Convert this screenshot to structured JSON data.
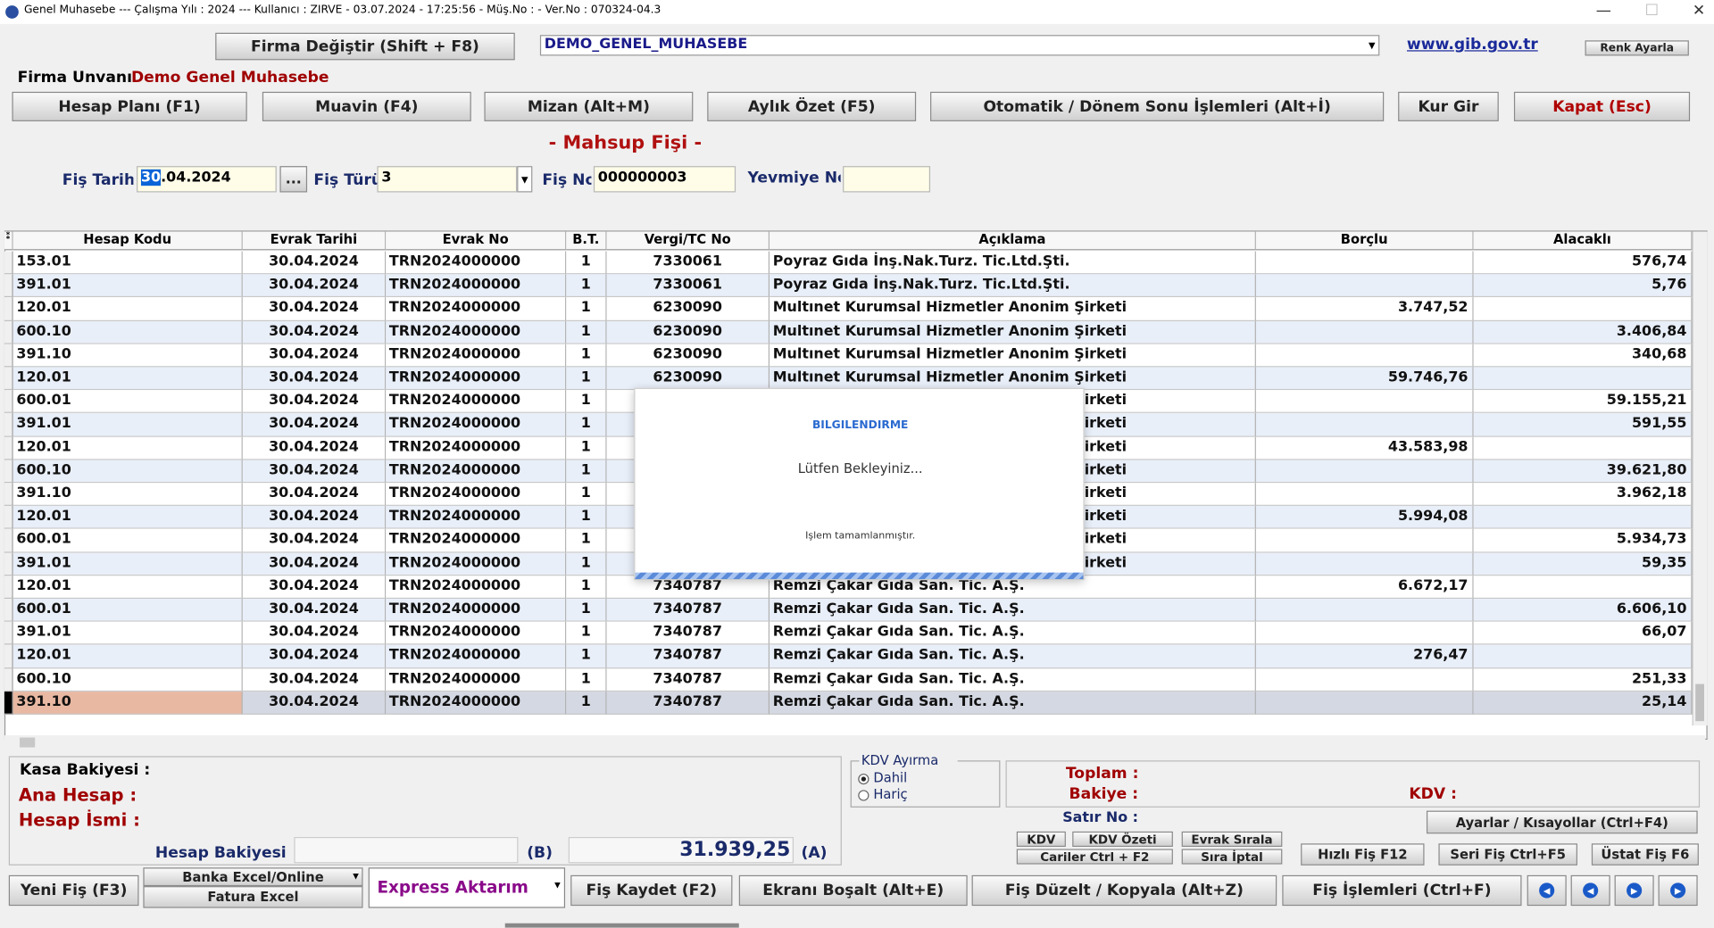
{
  "title_bar": "Genel Muhasebe --- Çalışma Yılı : 2024 --- Kullanıcı : ZIRVE - 03.07.2024 - 17:25:56 - Müş.No : - Ver.No : 070324-04.3",
  "header": {
    "firma_degistir": "Firma Değiştir (Shift + F8)",
    "company_select": "DEMO_GENEL_MUHASEBE",
    "link": "www.gib.gov.tr",
    "renk_ayarla": "Renk Ayarla",
    "firma_unvani_label": "Firma Unvanı :",
    "firma_unvani": "Demo Genel Muhasebe"
  },
  "toolbar": [
    "Hesap Planı (F1)",
    "Muavin (F4)",
    "Mizan (Alt+M)",
    "Aylık Özet (F5)",
    "Otomatik / Dönem Sonu İşlemleri (Alt+İ)",
    "Kur Gir",
    "Kapat (Esc)"
  ],
  "form": {
    "title": "- Mahsup Fişi -",
    "fis_tarihi_label": "Fiş Tarihi",
    "fis_tarihi": "30.04.2024",
    "fis_turu_label": "Fiş Türü",
    "fis_turu": "3",
    "fis_no_label": "Fiş No",
    "fis_no": "000000003",
    "yevmiye_no_label": "Yevmiye No"
  },
  "table": {
    "columns": [
      "Hesap Kodu",
      "Evrak Tarihi",
      "Evrak No",
      "B.T.",
      "Vergi/TC No",
      "Açıklama",
      "Borçlu",
      "Alacaklı"
    ],
    "rows": [
      [
        "153.01",
        "30.04.2024",
        "TRN2024000000",
        "1",
        "7330061",
        "Poyraz Gıda İnş.Nak.Turz. Tic.Ltd.Şti.",
        null,
        "576,74"
      ],
      [
        "391.01",
        "30.04.2024",
        "TRN2024000000",
        "1",
        "7330061",
        "Poyraz Gıda İnş.Nak.Turz. Tic.Ltd.Şti.",
        null,
        "5,76"
      ],
      [
        "120.01",
        "30.04.2024",
        "TRN2024000000",
        "1",
        "6230090",
        "Multınet Kurumsal Hizmetler Anonim Şirketi",
        "3.747,52",
        null
      ],
      [
        "600.10",
        "30.04.2024",
        "TRN2024000000",
        "1",
        "6230090",
        "Multınet Kurumsal Hizmetler Anonim Şirketi",
        null,
        "3.406,84"
      ],
      [
        "391.10",
        "30.04.2024",
        "TRN2024000000",
        "1",
        "6230090",
        "Multınet Kurumsal Hizmetler Anonim Şirketi",
        null,
        "340,68"
      ],
      [
        "120.01",
        "30.04.2024",
        "TRN2024000000",
        "1",
        "6230090",
        "Multınet Kurumsal Hizmetler Anonim Şirketi",
        "59.746,76",
        null
      ],
      [
        "600.01",
        "30.04.2024",
        "TRN2024000000",
        "1",
        null,
        "Multınet Kurumsal Hizmetler Anonim Şirketi",
        null,
        "59.155,21"
      ],
      [
        "391.01",
        "30.04.2024",
        "TRN2024000000",
        "1",
        null,
        "Multınet Kurumsal Hizmetler Anonim Şirketi",
        null,
        "591,55"
      ],
      [
        "120.01",
        "30.04.2024",
        "TRN2024000000",
        "1",
        null,
        "Multınet Kurumsal Hizmetler Anonim Şirketi",
        "43.583,98",
        null
      ],
      [
        "600.10",
        "30.04.2024",
        "TRN2024000000",
        "1",
        null,
        "Multınet Kurumsal Hizmetler Anonim Şirketi",
        null,
        "39.621,80"
      ],
      [
        "391.10",
        "30.04.2024",
        "TRN2024000000",
        "1",
        null,
        "Multınet Kurumsal Hizmetler Anonim Şirketi",
        null,
        "3.962,18"
      ],
      [
        "120.01",
        "30.04.2024",
        "TRN2024000000",
        "1",
        null,
        "Multınet Kurumsal Hizmetler Anonim Şirketi",
        "5.994,08",
        null
      ],
      [
        "600.01",
        "30.04.2024",
        "TRN2024000000",
        "1",
        null,
        "Multınet Kurumsal Hizmetler Anonim Şirketi",
        null,
        "5.934,73"
      ],
      [
        "391.01",
        "30.04.2024",
        "TRN2024000000",
        "1",
        null,
        "Multınet Kurumsal Hizmetler Anonim Şirketi",
        null,
        "59,35"
      ],
      [
        "120.01",
        "30.04.2024",
        "TRN2024000000",
        "1",
        "7340787",
        "Remzi Çakar Gıda San. Tic. A.Ş.",
        "6.672,17",
        null
      ],
      [
        "600.01",
        "30.04.2024",
        "TRN2024000000",
        "1",
        "7340787",
        "Remzi Çakar Gıda San. Tic. A.Ş.",
        null,
        "6.606,10"
      ],
      [
        "391.01",
        "30.04.2024",
        "TRN2024000000",
        "1",
        "7340787",
        "Remzi Çakar Gıda San. Tic. A.Ş.",
        null,
        "66,07"
      ],
      [
        "120.01",
        "30.04.2024",
        "TRN2024000000",
        "1",
        "7340787",
        "Remzi Çakar Gıda San. Tic. A.Ş.",
        "276,47",
        null
      ],
      [
        "600.10",
        "30.04.2024",
        "TRN2024000000",
        "1",
        "7340787",
        "Remzi Çakar Gıda San. Tic. A.Ş.",
        null,
        "251,33"
      ],
      [
        "391.10",
        "30.04.2024",
        "TRN2024000000",
        "1",
        "7340787",
        "Remzi Çakar Gıda San. Tic. A.Ş.",
        null,
        "25,14"
      ]
    ]
  },
  "dialog": {
    "title": "BİLGİLENDİRME",
    "message": "Lütfen Bekleyiniz...",
    "status": "İşlem tamamlanmıştır."
  },
  "summary": {
    "kasa_bakiyesi": "Kasa Bakiyesi :",
    "ana_hesap": "Ana Hesap :",
    "hesap_ismi": "Hesap İsmi :",
    "hesap_bakiyesi": "Hesap Bakiyesi =",
    "b": "(B)",
    "amount": "31.939,25",
    "a": "(A)",
    "kdv_ayirma": "KDV Ayırma",
    "dahil": "Dahil",
    "haric": "Hariç",
    "toplam": "Toplam :",
    "bakiye": "Bakiye :",
    "kdv": "KDV :",
    "satir_no": "Satır No :"
  },
  "small_buttons": [
    "KDV",
    "KDV Özeti",
    "Evrak Sırala",
    "Cariler Ctrl + F2",
    "Sıra İptal",
    "Ayarlar / Kısayollar (Ctrl+F4)",
    "Hızlı Fiş F12",
    "Seri Fiş Ctrl+F5",
    "Üstat Fiş F6"
  ],
  "bottom_buttons": [
    "Yeni Fiş (F3)",
    "Banka Excel/Online",
    "Fatura Excel",
    "Express Aktarım",
    "Fiş Kaydet (F2)",
    "Ekranı Boşalt (Alt+E)",
    "Fiş Düzelt / Kopyala (Alt+Z)",
    "Fiş İşlemleri (Ctrl+F)"
  ]
}
